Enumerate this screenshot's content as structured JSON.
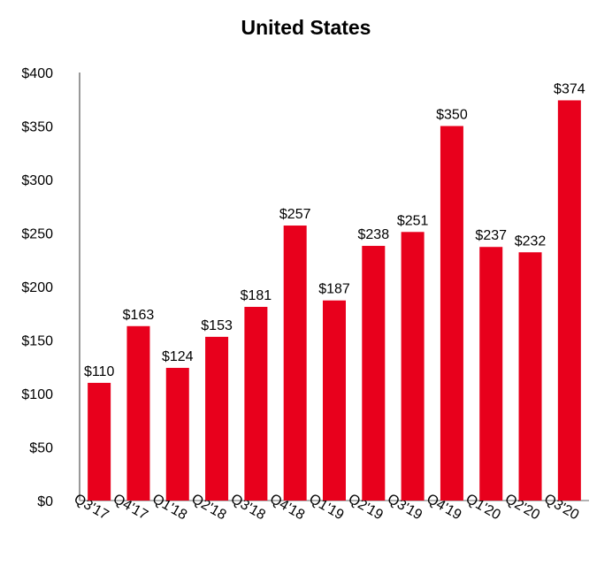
{
  "chart_data": {
    "type": "bar",
    "title": "United States",
    "xlabel": "",
    "ylabel": "",
    "categories": [
      "Q3'17",
      "Q4'17",
      "Q1'18",
      "Q2'18",
      "Q3'18",
      "Q4'18",
      "Q1'19",
      "Q2'19",
      "Q3'19",
      "Q4'19",
      "Q1'20",
      "Q2'20",
      "Q3'20"
    ],
    "values": [
      110,
      163,
      124,
      153,
      181,
      257,
      187,
      238,
      251,
      350,
      237,
      232,
      374
    ],
    "value_labels": [
      "$110",
      "$163",
      "$124",
      "$153",
      "$181",
      "$257",
      "$187",
      "$238",
      "$251",
      "$350",
      "$237",
      "$232",
      "$374"
    ],
    "ylim": [
      0,
      400
    ],
    "yticks": [
      0,
      50,
      100,
      150,
      200,
      250,
      300,
      350,
      400
    ],
    "ytick_labels": [
      "$0",
      "$50",
      "$100",
      "$150",
      "$200",
      "$250",
      "$300",
      "$350",
      "$400"
    ],
    "grid": false,
    "legend": "none",
    "bar_color": "#e8001c",
    "axis_color": "#999999"
  }
}
